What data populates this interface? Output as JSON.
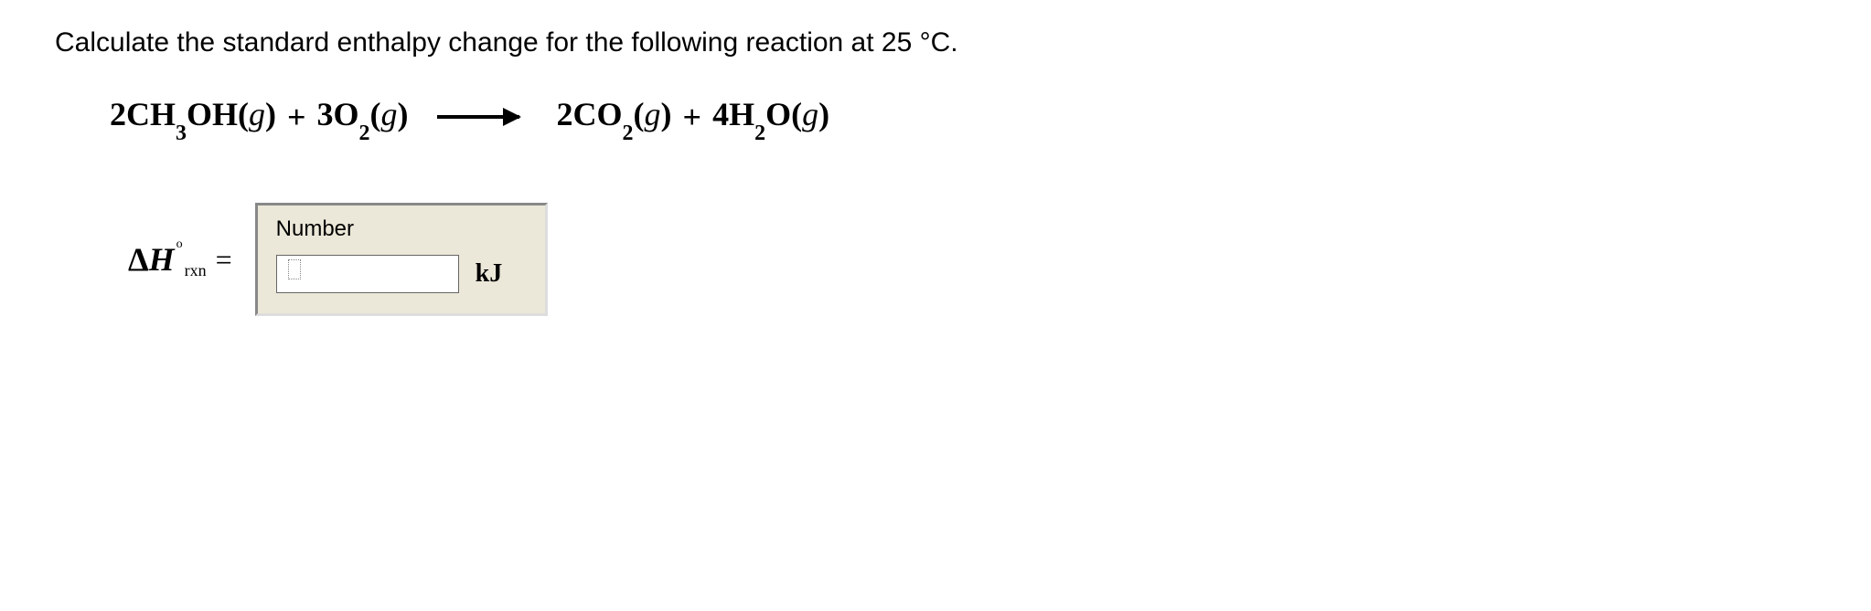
{
  "question": {
    "text": "Calculate the standard enthalpy change for the following reaction at 25 °C."
  },
  "equation": {
    "reactants": [
      {
        "coeff": "2",
        "formula_parts": [
          "CH",
          "3",
          "OH"
        ],
        "state": "g"
      },
      {
        "coeff": "3",
        "formula_parts": [
          "O",
          "2"
        ],
        "state": "g"
      }
    ],
    "products": [
      {
        "coeff": "2",
        "formula_parts": [
          "CO",
          "2"
        ],
        "state": "g"
      },
      {
        "coeff": "4",
        "formula_parts": [
          "H",
          "2",
          "O"
        ],
        "state": "g"
      }
    ],
    "plus": "+",
    "open_paren": "(",
    "close_paren": ")"
  },
  "answer": {
    "label_delta": "Δ",
    "label_H": "H",
    "label_sub": "rxn",
    "label_sup": "o",
    "equals": "=",
    "input_title": "Number",
    "input_value": "",
    "unit": "kJ"
  },
  "style": {
    "background_color": "#ffffff",
    "text_color": "#000000",
    "input_box_bg": "#ebe8d9",
    "input_border_dark": "#888888",
    "input_border_light": "#dddddd",
    "font_question_size": 30,
    "font_equation_size": 36,
    "font_equation_family": "Times New Roman",
    "font_question_family": "Arial"
  }
}
